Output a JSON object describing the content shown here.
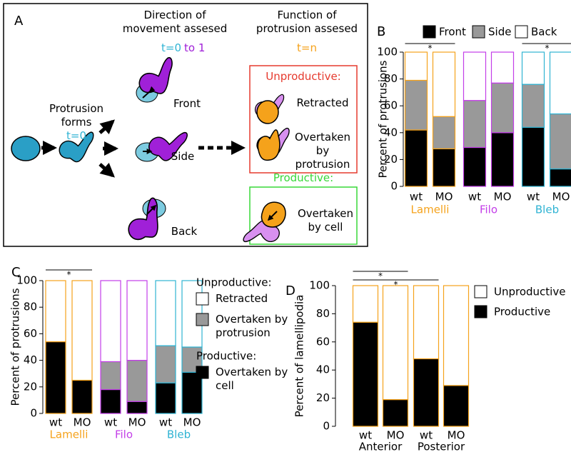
{
  "panel_a": {
    "label": "A",
    "col1_title": "Direction of movement assesed",
    "col1_time_start": "t=0",
    "col1_time_end": "to 1",
    "col2_title": "Function of protrusion assesed",
    "col2_time": "t=n",
    "start_label": "Protrusion forms",
    "start_time": "t=0",
    "directions": [
      "Front",
      "Side",
      "Back"
    ],
    "unproductive": {
      "title": "Unproductive:",
      "outcomes": [
        "Retracted",
        "Overtaken by protrusion"
      ]
    },
    "productive": {
      "title": "Productive:",
      "outcomes": [
        "Overtaken by cell"
      ]
    }
  },
  "chart_data": [
    {
      "type": "bar",
      "stacked": true,
      "panel": "B",
      "ylabel": "Percent of protrusions",
      "categories": [
        "wt",
        "MO",
        "wt",
        "MO",
        "wt",
        "MO"
      ],
      "groups": [
        {
          "name": "Lamelli",
          "color": "#f5a21b"
        },
        {
          "name": "Filo",
          "color": "#c33ee8"
        },
        {
          "name": "Bleb",
          "color": "#2fb3d3"
        }
      ],
      "series": [
        {
          "name": "Front",
          "color": "#000000",
          "values": [
            42,
            28,
            29,
            40,
            44,
            13
          ]
        },
        {
          "name": "Side",
          "color": "#999999",
          "values": [
            37,
            24,
            35,
            37,
            32,
            41
          ]
        },
        {
          "name": "Back",
          "color": "#ffffff",
          "values": [
            21,
            48,
            36,
            23,
            24,
            46
          ]
        }
      ],
      "ylim": [
        0,
        100
      ],
      "yticks": [
        0,
        20,
        40,
        60,
        80,
        100
      ],
      "legend": "top",
      "significance": [
        {
          "categories": [
            0,
            1
          ],
          "label": "*"
        },
        {
          "categories": [
            4,
            5
          ],
          "label": "*"
        }
      ]
    },
    {
      "type": "bar",
      "stacked": true,
      "panel": "C",
      "ylabel": "Percent of protrusions",
      "categories": [
        "wt",
        "MO",
        "wt",
        "MO",
        "wt",
        "MO"
      ],
      "groups": [
        {
          "name": "Lamelli",
          "color": "#f5a21b"
        },
        {
          "name": "Filo",
          "color": "#c33ee8"
        },
        {
          "name": "Bleb",
          "color": "#2fb3d3"
        }
      ],
      "series": [
        {
          "name": "Overtaken by cell",
          "color": "#000000",
          "values": [
            54,
            25,
            18,
            9,
            23,
            31
          ]
        },
        {
          "name": "Overtaken by protrusion",
          "color": "#999999",
          "values": [
            0,
            0,
            21,
            31,
            28,
            19
          ]
        },
        {
          "name": "Retracted",
          "color": "#ffffff",
          "values": [
            46,
            75,
            61,
            60,
            49,
            50
          ]
        }
      ],
      "ylim": [
        0,
        100
      ],
      "yticks": [
        0,
        20,
        40,
        60,
        80,
        100
      ],
      "legend": "right",
      "legend_groups": [
        {
          "label": "Unproductive:",
          "series": [
            2,
            1
          ]
        },
        {
          "label": "Productive:",
          "series": [
            0
          ]
        }
      ],
      "significance": [
        {
          "categories": [
            0,
            1
          ],
          "label": "*"
        }
      ]
    },
    {
      "type": "bar",
      "stacked": true,
      "panel": "D",
      "ylabel": "Percent of lamellipodia",
      "categories": [
        "wt",
        "MO",
        "wt",
        "MO"
      ],
      "groups": [
        {
          "name": "Anterior",
          "color": "#000000"
        },
        {
          "name": "Posterior",
          "color": "#000000"
        }
      ],
      "bar_color": "#f5a21b",
      "series": [
        {
          "name": "Productive",
          "color": "#000000",
          "values": [
            74,
            19,
            48,
            29
          ]
        },
        {
          "name": "Unproductive",
          "color": "#ffffff",
          "values": [
            26,
            81,
            52,
            71
          ]
        }
      ],
      "ylim": [
        0,
        100
      ],
      "yticks": [
        0,
        20,
        40,
        60,
        80,
        100
      ],
      "legend": "right",
      "significance": [
        {
          "categories": [
            0,
            1
          ],
          "label": "*"
        },
        {
          "categories": [
            0,
            2
          ],
          "label": "*"
        }
      ]
    }
  ]
}
